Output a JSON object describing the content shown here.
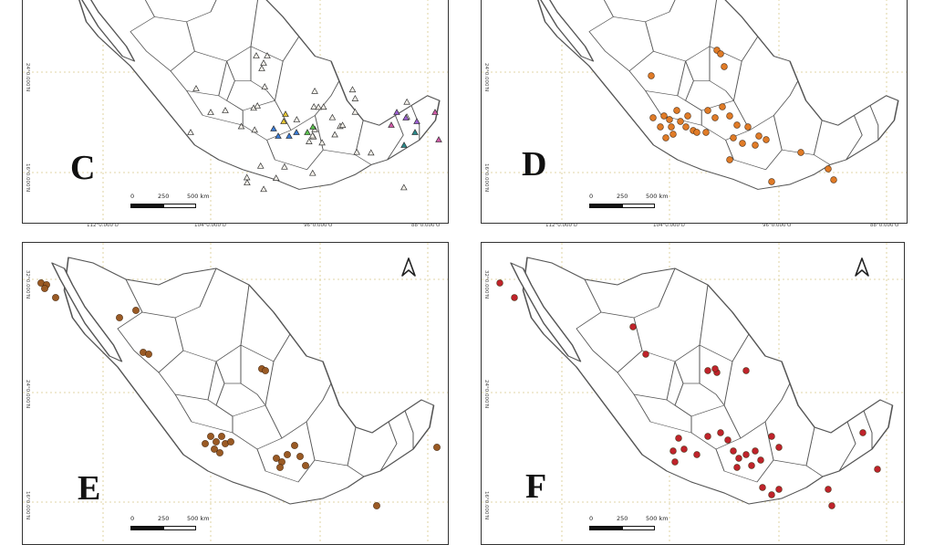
{
  "panels": [
    {
      "id": "C",
      "letter": "C",
      "scale": {
        "zero": "0",
        "mid": "250",
        "end": "500 km"
      },
      "lon_labels": [
        "112°0.000'O",
        "104°0.000'O",
        "96°0.000'O",
        "88°0.000'O"
      ],
      "lat_labels": [
        "24°0.000'N",
        "16°0.000'N"
      ],
      "marker": "triangle-multicolor",
      "north_arrow": false
    },
    {
      "id": "D",
      "letter": "D",
      "scale": {
        "zero": "0",
        "mid": "250",
        "end": "500 km"
      },
      "lon_labels": [
        "112°0.000'O",
        "104°0.000'O",
        "96°0.000'O",
        "88°0.000'O"
      ],
      "lat_labels": [
        "24°0.000'N",
        "16°0.000'N"
      ],
      "marker": "circle",
      "marker_color": "#e07b27",
      "north_arrow": false
    },
    {
      "id": "E",
      "letter": "E",
      "scale": {
        "zero": "0",
        "mid": "250",
        "end": "500 km"
      },
      "lat_labels": [
        "32°0.000'N",
        "24°0.000'N",
        "16°0.000'N"
      ],
      "marker": "circle",
      "marker_color": "#9a5a24",
      "north_arrow": true,
      "north_icon": "north-arrow-icon"
    },
    {
      "id": "F",
      "letter": "F",
      "scale": {
        "zero": "0",
        "mid": "250",
        "end": "500 km"
      },
      "lat_labels": [
        "32°0.000'N",
        "24°0.000'N",
        "16°0.000'N"
      ],
      "marker": "circle",
      "marker_color": "#c0232b",
      "north_arrow": true,
      "north_icon": "north-arrow-icon"
    }
  ],
  "colors": {
    "outline": "#555555",
    "grid": "#d8c98a",
    "triangle_white": "#f4f1ea",
    "triangle_blue": "#3a7bd5",
    "triangle_green": "#59c24c",
    "triangle_yellow": "#e6c532",
    "triangle_purple": "#9b5fd0",
    "triangle_pink": "#d15aa8",
    "triangle_teal": "#2a8a8c"
  }
}
